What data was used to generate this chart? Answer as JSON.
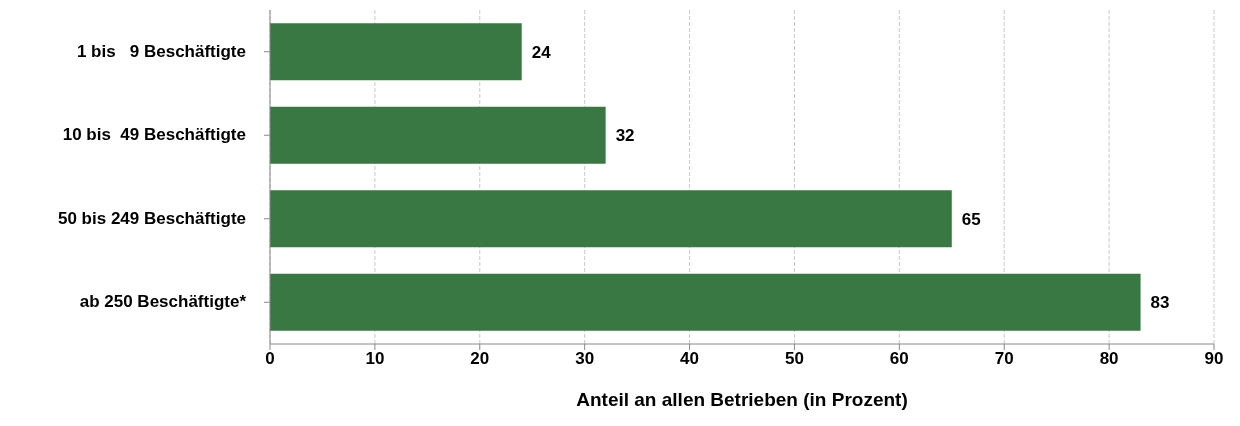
{
  "chart_data": {
    "type": "bar",
    "orientation": "horizontal",
    "categories": [
      "1 bis   9 Beschäftigte",
      "10 bis  49 Beschäftigte",
      "50 bis 249 Beschäftigte",
      "ab 250 Beschäftigte*"
    ],
    "values": [
      24,
      32,
      65,
      83
    ],
    "color": "#3a7843",
    "data_labels": true,
    "xlabel": "Anteil an allen Betrieben (in Prozent)",
    "xlim": [
      0,
      90
    ],
    "xticks": [
      0,
      10,
      20,
      30,
      40,
      50,
      60,
      70,
      80,
      90
    ],
    "grid": "x"
  }
}
